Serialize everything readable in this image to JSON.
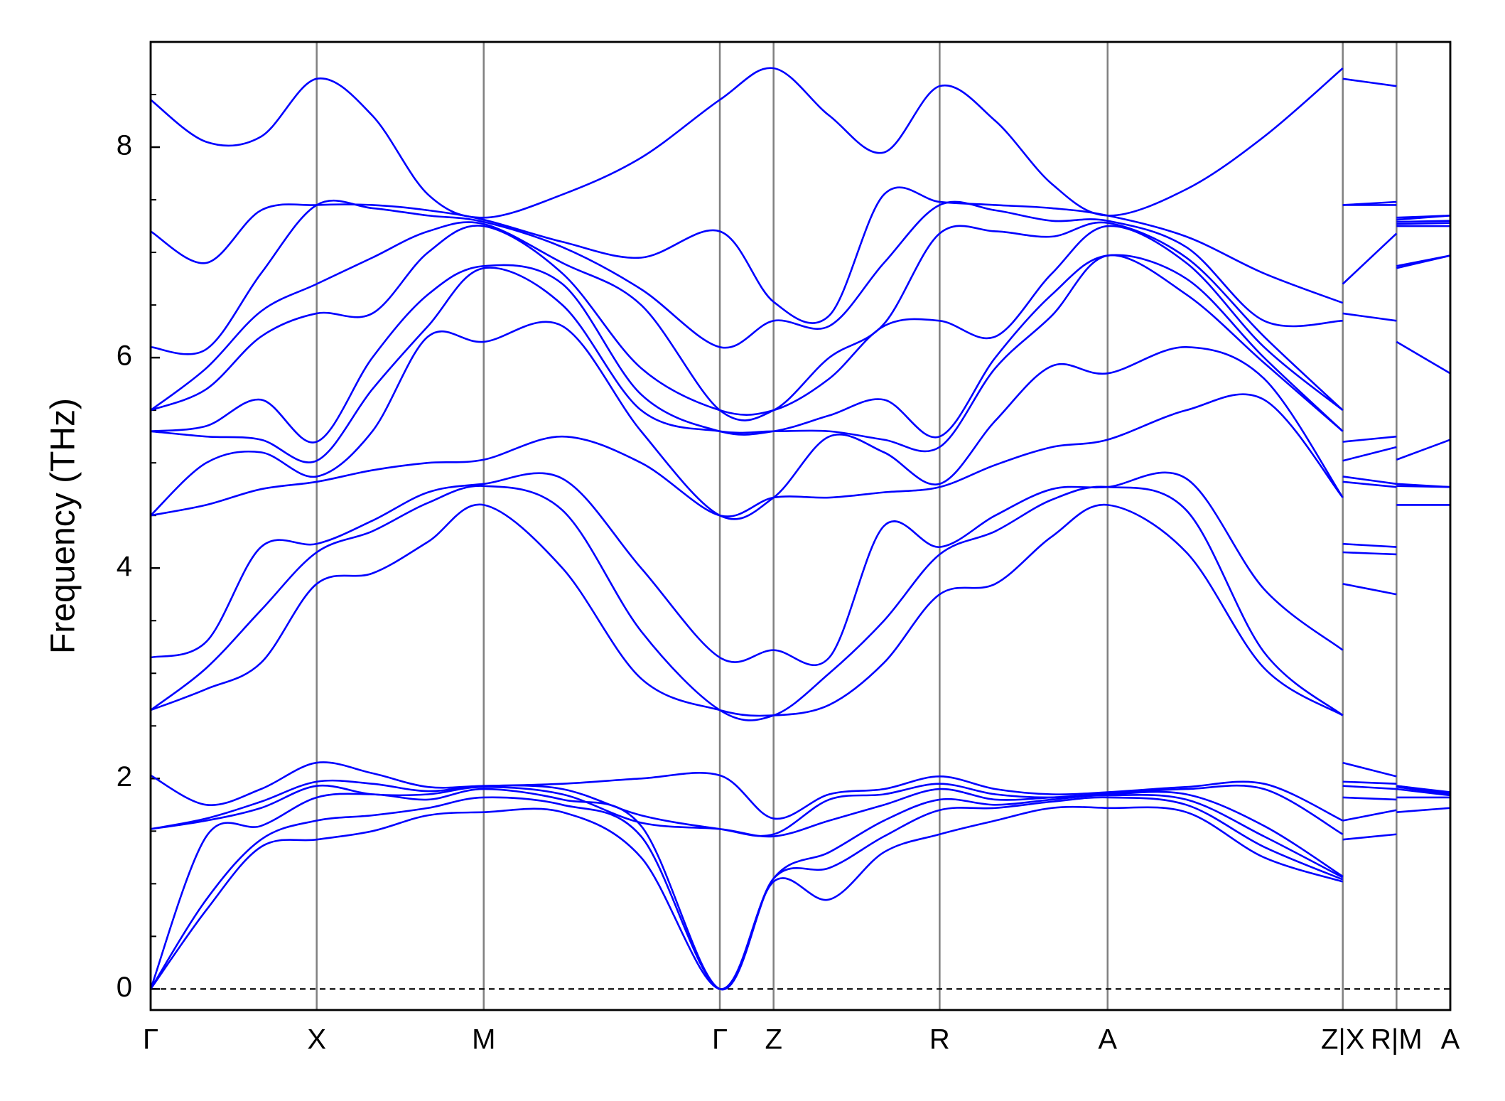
{
  "chart_data": {
    "type": "line",
    "ylabel": "Frequency (THz)",
    "color": "#0000ff",
    "xlim": [
      0,
      13.54
    ],
    "ylim": [
      -0.2,
      9.0
    ],
    "xticks": [
      {
        "value": 0,
        "label": "Γ"
      },
      {
        "value": 1.73,
        "label": "X"
      },
      {
        "value": 3.47,
        "label": "M"
      },
      {
        "value": 5.93,
        "label": "Γ"
      },
      {
        "value": 6.49,
        "label": "Z"
      },
      {
        "value": 8.22,
        "label": "R"
      },
      {
        "value": 9.97,
        "label": "A"
      },
      {
        "value": 12.42,
        "label": "Z|X"
      },
      {
        "value": 12.98,
        "label": "R|M"
      },
      {
        "value": 13.54,
        "label": "A"
      }
    ],
    "yticks": [
      0,
      2,
      4,
      6,
      8
    ],
    "yminorticks": [
      0.5,
      1,
      1.5,
      2.5,
      3,
      3.5,
      4.5,
      5,
      5.5,
      6.5,
      7,
      7.5,
      8.5
    ],
    "hline": 0,
    "x": [
      0,
      0.58,
      1.15,
      1.73,
      2.31,
      2.89,
      3.47,
      4.29,
      5.11,
      5.93,
      6.49,
      7.07,
      7.64,
      8.22,
      8.8,
      9.39,
      9.97,
      10.79,
      11.6,
      12.42,
      12.42,
      12.42,
      12.98,
      12.98,
      12.98,
      13.54
    ],
    "series": [
      {
        "values": [
          0,
          0.75,
          1.35,
          1.42,
          1.5,
          1.65,
          1.68,
          1.68,
          1.25,
          0,
          1.02,
          0.85,
          1.3,
          1.47,
          1.6,
          1.72,
          1.72,
          1.68,
          1.25,
          1.02,
          null,
          1.42,
          1.47,
          null,
          1.68,
          1.72
        ]
      },
      {
        "values": [
          0,
          0.85,
          1.42,
          1.6,
          1.65,
          1.72,
          1.82,
          1.75,
          1.45,
          0,
          1.05,
          1.15,
          1.45,
          1.7,
          1.72,
          1.78,
          1.82,
          1.75,
          1.35,
          1.04,
          null,
          1.6,
          1.7,
          null,
          1.82,
          1.82
        ]
      },
      {
        "values": [
          0,
          1.45,
          1.55,
          1.82,
          1.85,
          1.8,
          1.9,
          1.8,
          1.55,
          0,
          1.05,
          1.3,
          1.6,
          1.8,
          1.75,
          1.8,
          1.84,
          1.8,
          1.45,
          1.06,
          null,
          1.82,
          1.8,
          null,
          1.9,
          1.84
        ]
      },
      {
        "values": [
          1.52,
          1.6,
          1.72,
          1.93,
          1.85,
          1.85,
          1.92,
          1.85,
          1.58,
          1.52,
          1.45,
          1.6,
          1.75,
          1.9,
          1.8,
          1.82,
          1.85,
          1.85,
          1.55,
          1.07,
          null,
          1.93,
          1.9,
          null,
          1.92,
          1.85
        ]
      },
      {
        "values": [
          1.52,
          1.62,
          1.78,
          1.97,
          1.95,
          1.88,
          1.93,
          1.9,
          1.65,
          1.52,
          1.47,
          1.8,
          1.85,
          1.95,
          1.85,
          1.82,
          1.86,
          1.9,
          1.9,
          1.47,
          null,
          1.97,
          1.95,
          null,
          1.93,
          1.86
        ]
      },
      {
        "values": [
          2.03,
          1.75,
          1.9,
          2.15,
          2.05,
          1.92,
          1.93,
          1.95,
          2.0,
          2.03,
          1.62,
          1.85,
          1.9,
          2.02,
          1.9,
          1.85,
          1.87,
          1.92,
          1.95,
          1.6,
          null,
          2.15,
          2.02,
          null,
          1.93,
          1.87
        ]
      },
      {
        "values": [
          2.65,
          2.85,
          3.1,
          3.85,
          3.95,
          4.25,
          4.6,
          4.0,
          2.95,
          2.65,
          2.6,
          2.7,
          3.1,
          3.75,
          3.85,
          4.3,
          4.6,
          4.15,
          3.05,
          2.6,
          null,
          3.85,
          3.75,
          null,
          4.6,
          4.6
        ]
      },
      {
        "values": [
          2.65,
          3.05,
          3.6,
          4.15,
          4.35,
          4.62,
          4.78,
          4.55,
          3.4,
          2.65,
          2.6,
          3.0,
          3.5,
          4.13,
          4.35,
          4.65,
          4.77,
          4.55,
          3.2,
          2.6,
          null,
          4.15,
          4.13,
          null,
          4.78,
          4.77
        ]
      },
      {
        "values": [
          3.15,
          3.3,
          4.2,
          4.23,
          4.45,
          4.72,
          4.8,
          4.85,
          4.0,
          3.15,
          3.22,
          3.15,
          4.4,
          4.2,
          4.5,
          4.75,
          4.77,
          4.85,
          3.8,
          3.22,
          null,
          4.23,
          4.2,
          null,
          4.8,
          4.77
        ]
      },
      {
        "values": [
          4.5,
          4.6,
          4.75,
          4.82,
          4.93,
          5.0,
          5.03,
          5.25,
          5.0,
          4.5,
          4.67,
          4.67,
          4.72,
          4.77,
          4.98,
          5.15,
          5.22,
          5.5,
          5.6,
          4.67,
          null,
          4.82,
          4.77,
          null,
          5.03,
          5.22
        ]
      },
      {
        "values": [
          4.5,
          5.0,
          5.1,
          4.87,
          5.3,
          6.2,
          6.15,
          6.3,
          5.3,
          4.5,
          4.67,
          5.25,
          5.1,
          4.8,
          5.4,
          5.92,
          5.85,
          6.1,
          5.8,
          4.67,
          null,
          4.87,
          4.8,
          null,
          6.15,
          5.85
        ]
      },
      {
        "values": [
          5.3,
          5.25,
          5.22,
          5.02,
          5.7,
          6.3,
          6.85,
          6.5,
          5.5,
          5.3,
          5.3,
          5.3,
          5.22,
          5.15,
          5.9,
          6.4,
          6.97,
          6.6,
          5.95,
          5.3,
          null,
          5.02,
          5.15,
          null,
          6.85,
          6.97
        ]
      },
      {
        "values": [
          5.3,
          5.35,
          5.6,
          5.2,
          6.0,
          6.6,
          6.87,
          6.7,
          5.65,
          5.3,
          5.3,
          5.45,
          5.6,
          5.25,
          6.0,
          6.6,
          6.97,
          6.75,
          6.0,
          5.3,
          null,
          5.2,
          5.25,
          null,
          6.87,
          6.97
        ]
      },
      {
        "values": [
          5.5,
          5.7,
          6.2,
          6.42,
          6.42,
          7.0,
          7.25,
          6.8,
          5.9,
          5.5,
          5.5,
          5.8,
          6.3,
          6.35,
          6.2,
          6.8,
          7.25,
          6.9,
          6.1,
          5.5,
          null,
          6.42,
          6.35,
          null,
          7.25,
          7.25
        ]
      },
      {
        "values": [
          5.5,
          5.9,
          6.44,
          6.7,
          6.95,
          7.2,
          7.27,
          6.9,
          6.5,
          5.5,
          5.5,
          6.0,
          6.32,
          7.18,
          7.2,
          7.15,
          7.28,
          6.95,
          6.2,
          5.5,
          null,
          6.7,
          7.18,
          null,
          7.27,
          7.28
        ]
      },
      {
        "values": [
          6.1,
          6.08,
          6.8,
          7.45,
          7.42,
          7.35,
          7.29,
          7.05,
          6.65,
          6.1,
          6.35,
          6.3,
          6.9,
          7.45,
          7.4,
          7.3,
          7.3,
          7.05,
          6.35,
          6.35,
          null,
          7.45,
          7.45,
          null,
          7.29,
          7.3
        ]
      },
      {
        "values": [
          7.2,
          6.9,
          7.4,
          7.45,
          7.45,
          7.4,
          7.31,
          7.1,
          6.95,
          7.2,
          6.53,
          6.4,
          7.55,
          7.48,
          7.45,
          7.42,
          7.35,
          7.15,
          6.8,
          6.52,
          null,
          7.45,
          7.48,
          null,
          7.31,
          7.35
        ]
      },
      {
        "values": [
          8.45,
          8.05,
          8.1,
          8.65,
          8.3,
          7.55,
          7.33,
          7.55,
          7.9,
          8.45,
          8.75,
          8.3,
          7.95,
          8.58,
          8.25,
          7.65,
          7.35,
          7.6,
          8.1,
          8.75,
          null,
          8.65,
          8.58,
          null,
          7.33,
          7.35
        ]
      }
    ]
  }
}
